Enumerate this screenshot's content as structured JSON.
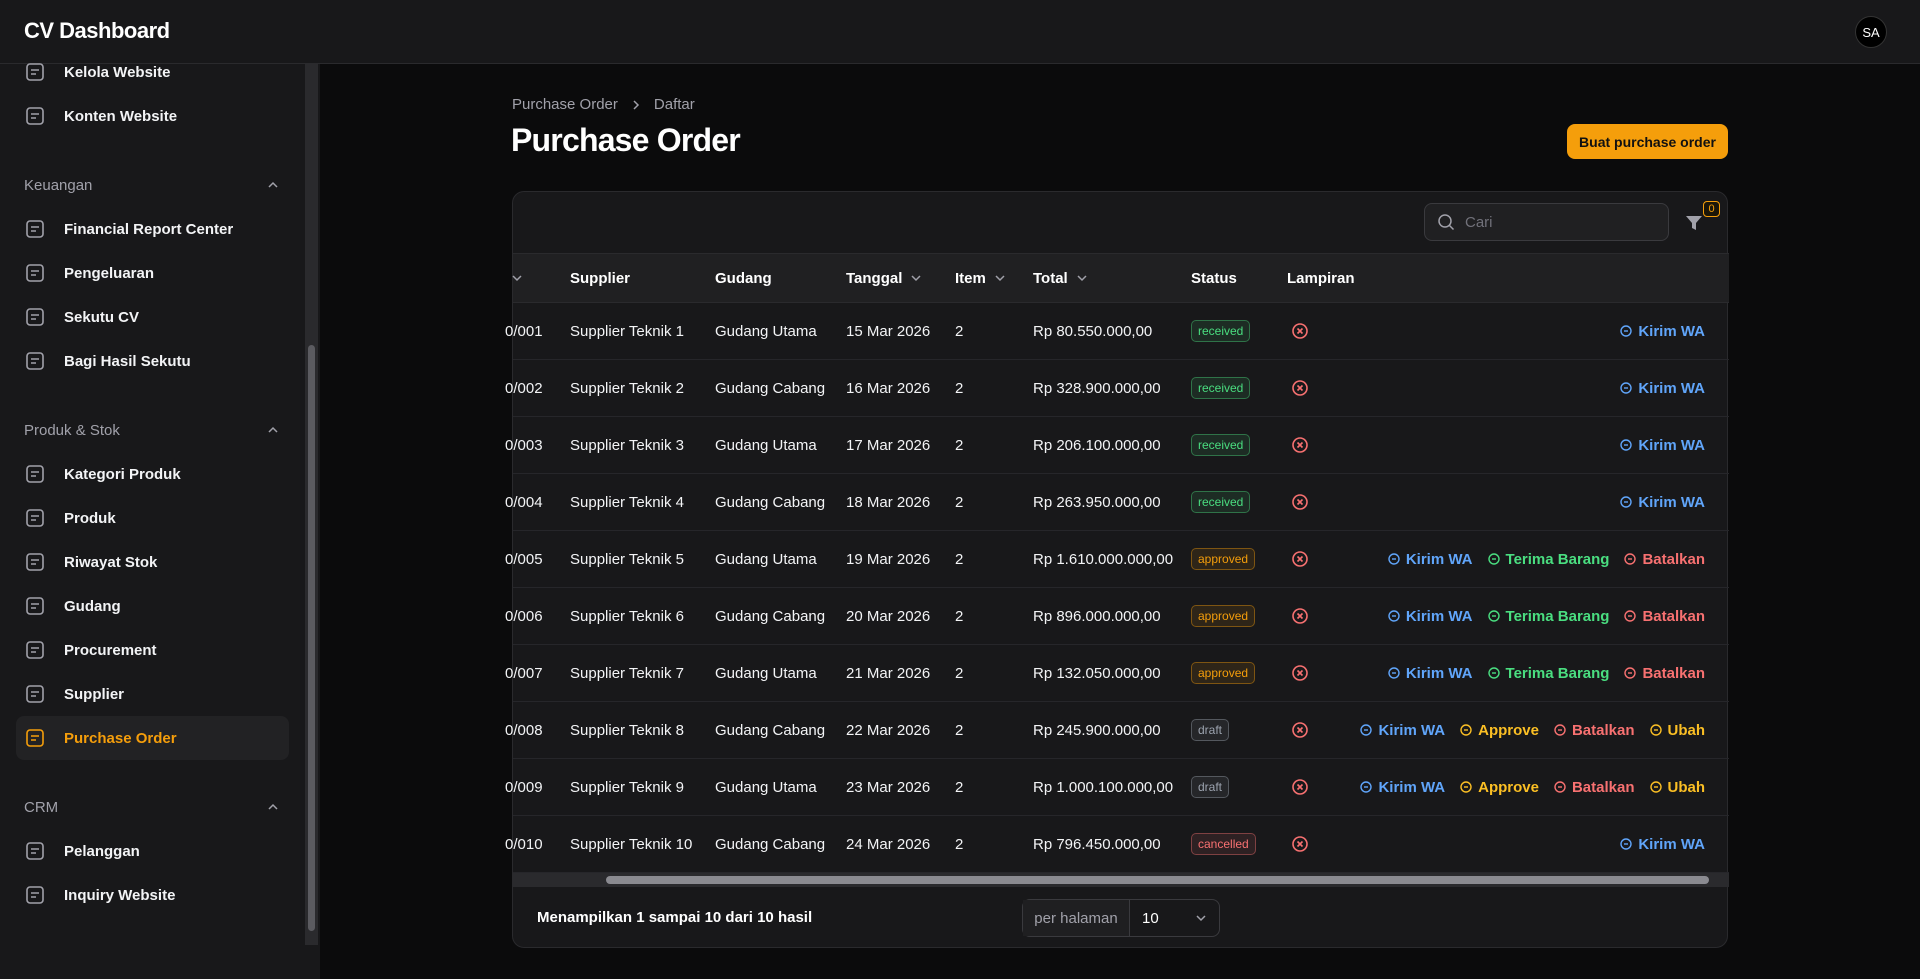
{
  "header": {
    "title": "CV Dashboard",
    "avatar": "SA"
  },
  "sidebar": {
    "top_items": [
      "Kelola Website",
      "Konten Website"
    ],
    "groups": [
      {
        "label": "Keuangan",
        "items": [
          "Financial Report Center",
          "Pengeluaran",
          "Sekutu CV",
          "Bagi Hasil Sekutu"
        ]
      },
      {
        "label": "Produk & Stok",
        "items": [
          "Kategori Produk",
          "Produk",
          "Riwayat Stok",
          "Gudang",
          "Procurement",
          "Supplier",
          "Purchase Order"
        ]
      },
      {
        "label": "CRM",
        "items": [
          "Pelanggan",
          "Inquiry Website"
        ]
      }
    ],
    "active": "Purchase Order"
  },
  "breadcrumb": [
    "Purchase Order",
    "Daftar"
  ],
  "page": {
    "title": "Purchase Order",
    "button": "Buat purchase order"
  },
  "toolbar": {
    "search_placeholder": "Cari",
    "filter_count": "0"
  },
  "table": {
    "columns": [
      "Supplier",
      "Gudang",
      "Tanggal",
      "Item",
      "Total",
      "Status",
      "Lampiran"
    ],
    "rows": [
      {
        "id": "0/001",
        "supplier": "Supplier Teknik 1",
        "gudang": "Gudang Utama",
        "tanggal": "15 Mar 2026",
        "item": 2,
        "total": "Rp 80.550.000,00",
        "status": {
          "label": "received",
          "color": "#4ade80"
        },
        "actions": [
          {
            "label": "Kirim WA",
            "color": "#60a5fa"
          }
        ]
      },
      {
        "id": "0/002",
        "supplier": "Supplier Teknik 2",
        "gudang": "Gudang Cabang",
        "tanggal": "16 Mar 2026",
        "item": 2,
        "total": "Rp 328.900.000,00",
        "status": {
          "label": "received",
          "color": "#4ade80"
        },
        "actions": [
          {
            "label": "Kirim WA",
            "color": "#60a5fa"
          }
        ]
      },
      {
        "id": "0/003",
        "supplier": "Supplier Teknik 3",
        "gudang": "Gudang Utama",
        "tanggal": "17 Mar 2026",
        "item": 2,
        "total": "Rp 206.100.000,00",
        "status": {
          "label": "received",
          "color": "#4ade80"
        },
        "actions": [
          {
            "label": "Kirim WA",
            "color": "#60a5fa"
          }
        ]
      },
      {
        "id": "0/004",
        "supplier": "Supplier Teknik 4",
        "gudang": "Gudang Cabang",
        "tanggal": "18 Mar 2026",
        "item": 2,
        "total": "Rp 263.950.000,00",
        "status": {
          "label": "received",
          "color": "#4ade80"
        },
        "actions": [
          {
            "label": "Kirim WA",
            "color": "#60a5fa"
          }
        ]
      },
      {
        "id": "0/005",
        "supplier": "Supplier Teknik 5",
        "gudang": "Gudang Utama",
        "tanggal": "19 Mar 2026",
        "item": 2,
        "total": "Rp 1.610.000.000,00",
        "status": {
          "label": "approved",
          "color": "#f59e0b"
        },
        "actions": [
          {
            "label": "Kirim WA",
            "color": "#60a5fa"
          },
          {
            "label": "Terima Barang",
            "color": "#4ade80"
          },
          {
            "label": "Batalkan",
            "color": "#f87171"
          }
        ]
      },
      {
        "id": "0/006",
        "supplier": "Supplier Teknik 6",
        "gudang": "Gudang Cabang",
        "tanggal": "20 Mar 2026",
        "item": 2,
        "total": "Rp 896.000.000,00",
        "status": {
          "label": "approved",
          "color": "#f59e0b"
        },
        "actions": [
          {
            "label": "Kirim WA",
            "color": "#60a5fa"
          },
          {
            "label": "Terima Barang",
            "color": "#4ade80"
          },
          {
            "label": "Batalkan",
            "color": "#f87171"
          }
        ]
      },
      {
        "id": "0/007",
        "supplier": "Supplier Teknik 7",
        "gudang": "Gudang Utama",
        "tanggal": "21 Mar 2026",
        "item": 2,
        "total": "Rp 132.050.000,00",
        "status": {
          "label": "approved",
          "color": "#f59e0b"
        },
        "actions": [
          {
            "label": "Kirim WA",
            "color": "#60a5fa"
          },
          {
            "label": "Terima Barang",
            "color": "#4ade80"
          },
          {
            "label": "Batalkan",
            "color": "#f87171"
          }
        ]
      },
      {
        "id": "0/008",
        "supplier": "Supplier Teknik 8",
        "gudang": "Gudang Cabang",
        "tanggal": "22 Mar 2026",
        "item": 2,
        "total": "Rp 245.900.000,00",
        "status": {
          "label": "draft",
          "color": "#9ca3af"
        },
        "actions": [
          {
            "label": "Kirim WA",
            "color": "#60a5fa"
          },
          {
            "label": "Approve",
            "color": "#fbbf24"
          },
          {
            "label": "Batalkan",
            "color": "#f87171"
          },
          {
            "label": "Ubah",
            "color": "#fbbf24"
          }
        ]
      },
      {
        "id": "0/009",
        "supplier": "Supplier Teknik 9",
        "gudang": "Gudang Utama",
        "tanggal": "23 Mar 2026",
        "item": 2,
        "total": "Rp 1.000.100.000,00",
        "status": {
          "label": "draft",
          "color": "#9ca3af"
        },
        "actions": [
          {
            "label": "Kirim WA",
            "color": "#60a5fa"
          },
          {
            "label": "Approve",
            "color": "#fbbf24"
          },
          {
            "label": "Batalkan",
            "color": "#f87171"
          },
          {
            "label": "Ubah",
            "color": "#fbbf24"
          }
        ]
      },
      {
        "id": "0/010",
        "supplier": "Supplier Teknik 10",
        "gudang": "Gudang Cabang",
        "tanggal": "24 Mar 2026",
        "item": 2,
        "total": "Rp 796.450.000,00",
        "status": {
          "label": "cancelled",
          "color": "#f87171"
        },
        "actions": [
          {
            "label": "Kirim WA",
            "color": "#60a5fa"
          }
        ]
      }
    ]
  },
  "footer": {
    "summary": "Menampilkan 1 sampai 10 dari 10 hasil",
    "per_page_label": "per halaman",
    "per_page_value": "10"
  }
}
